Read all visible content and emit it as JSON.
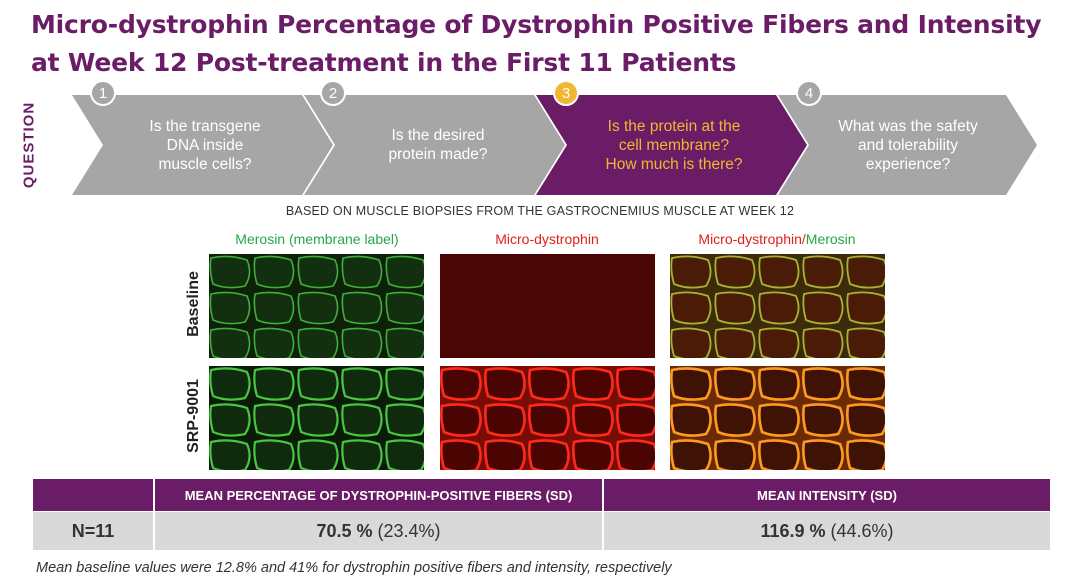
{
  "title": "Micro-dystrophin Percentage of Dystrophin Positive Fibers and Intensity at Week 12 Post-treatment in the First 11 Patients",
  "question_label": "QUESTION",
  "steps": [
    {
      "number": "1",
      "text": "Is the transgene\nDNA inside\nmuscle cells?",
      "active": false
    },
    {
      "number": "2",
      "text": "Is the desired\nprotein made?",
      "active": false
    },
    {
      "number": "3",
      "text": "Is the protein at the\ncell membrane?\nHow much is there?",
      "active": true
    },
    {
      "number": "4",
      "text": "What was the safety\nand tolerability\nexperience?",
      "active": false
    }
  ],
  "colors": {
    "purple": "#6b1c66",
    "gray": "#a6a6a6",
    "gold": "#f2b632",
    "green": "#22a84a",
    "red": "#e0201c"
  },
  "subtitle": "BASED ON MUSCLE BIOPSIES FROM THE GASTROCNEMIUS MUSCLE AT WEEK 12",
  "columns": {
    "merosin": "Merosin (membrane label)",
    "micro": "Micro-dystrophin",
    "merged_a": "Micro-dystrophin",
    "merged_sep": "/",
    "merged_b": "Merosin"
  },
  "rows": {
    "baseline": "Baseline",
    "treated": "SRP-9001"
  },
  "table": {
    "header_fibers": "MEAN PERCENTAGE OF DYSTROPHIN-POSITIVE FIBERS (SD)",
    "header_intensity": "MEAN INTENSITY  (SD)",
    "n": "N=11",
    "fibers_value": "70.5 %",
    "fibers_sd": " (23.4%)",
    "intensity_value": "116.9 %",
    "intensity_sd": " (44.6%)"
  },
  "footnote": "Mean baseline values were 12.8% and 41% for dystrophin positive fibers and intensity, respectively"
}
